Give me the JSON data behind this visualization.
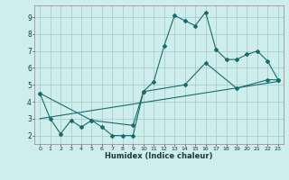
{
  "xlabel": "Humidex (Indice chaleur)",
  "bg_color": "#ceeeed",
  "grid_color": "#aacece",
  "line_color": "#1a6b6b",
  "line1_x": [
    0,
    1,
    2,
    3,
    4,
    5,
    6,
    7,
    8,
    9,
    10,
    11,
    12,
    13,
    14,
    15,
    16,
    17,
    18,
    19,
    20,
    21,
    22,
    23
  ],
  "line1_y": [
    4.5,
    3.0,
    2.1,
    2.9,
    2.5,
    2.9,
    2.5,
    2.0,
    2.0,
    2.0,
    4.6,
    5.2,
    7.3,
    9.1,
    8.8,
    8.5,
    9.3,
    7.1,
    6.5,
    6.5,
    6.8,
    7.0,
    6.4,
    5.3
  ],
  "line2_x": [
    0,
    5,
    9,
    10,
    14,
    16,
    19,
    22,
    23
  ],
  "line2_y": [
    4.5,
    2.9,
    2.6,
    4.6,
    5.0,
    6.3,
    4.8,
    5.3,
    5.3
  ],
  "line3_x": [
    0,
    23
  ],
  "line3_y": [
    3.0,
    5.2
  ],
  "xlim": [
    -0.5,
    23.5
  ],
  "ylim": [
    1.5,
    9.7
  ],
  "yticks": [
    2,
    3,
    4,
    5,
    6,
    7,
    8,
    9
  ],
  "ytick_labels": [
    "2",
    "3",
    "4",
    "5",
    "6",
    "7",
    "8",
    "9"
  ],
  "xtick_positions": [
    0,
    1,
    2,
    3,
    4,
    5,
    6,
    7,
    8,
    9,
    10,
    11,
    12,
    13,
    14,
    15,
    16,
    17,
    18,
    19,
    20,
    21,
    22,
    23
  ],
  "xtick_labels": [
    "0",
    "1",
    "2",
    "3",
    "4",
    "5",
    "6",
    "7",
    "8",
    "9",
    "10",
    "11",
    "12",
    "13",
    "14",
    "15",
    "16",
    "17",
    "18",
    "19",
    "20",
    "21",
    "22",
    "23"
  ]
}
